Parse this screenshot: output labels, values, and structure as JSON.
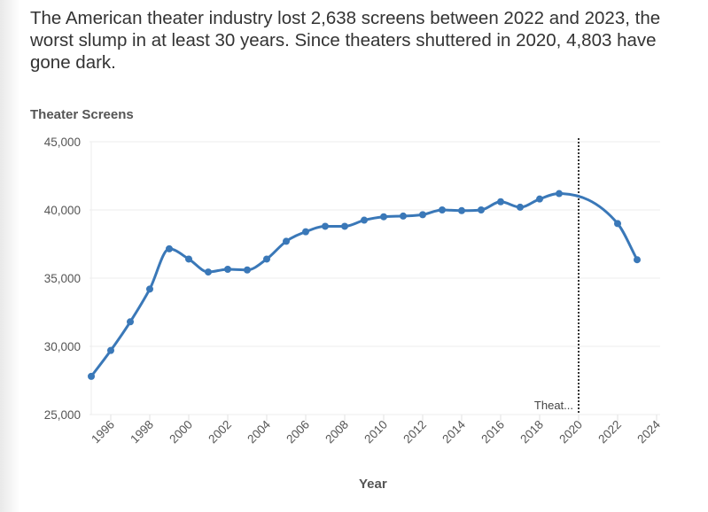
{
  "headline": "The American theater industry lost 2,638 screens between 2022 and 2023, the worst slump in at least 30 years. Since theaters shuttered in 2020, 4,803 have gone dark.",
  "chart_data": {
    "type": "line",
    "title": "",
    "ylabel": "Theater Screens",
    "xlabel": "Year",
    "ylim": [
      25000,
      45000
    ],
    "xlim": [
      1995,
      2024
    ],
    "y_ticks": [
      "25,000",
      "30,000",
      "35,000",
      "40,000",
      "45,000"
    ],
    "x_ticks": [
      "1996",
      "1998",
      "2000",
      "2002",
      "2004",
      "2006",
      "2008",
      "2010",
      "2012",
      "2014",
      "2016",
      "2018",
      "2020",
      "2022",
      "2024"
    ],
    "grid": true,
    "color": "#3a78b8",
    "series": [
      {
        "x": [
          1995,
          1996,
          1997,
          1998,
          1999,
          2000,
          2001,
          2002,
          2003,
          2004,
          2005,
          2006,
          2007,
          2008,
          2009,
          2010,
          2011,
          2012,
          2013,
          2014,
          2015,
          2016,
          2017,
          2018,
          2019,
          2022,
          2023
        ],
        "values": [
          27800,
          29700,
          31800,
          34200,
          37150,
          36400,
          35450,
          35650,
          35600,
          36400,
          37700,
          38400,
          38800,
          38800,
          39250,
          39500,
          39550,
          39650,
          40000,
          39950,
          40000,
          40600,
          40200,
          40800,
          41200,
          39000,
          36350
        ]
      }
    ],
    "annotations": [
      {
        "x": 2020,
        "label": "Theat...",
        "style": "dotted vertical line"
      }
    ]
  }
}
